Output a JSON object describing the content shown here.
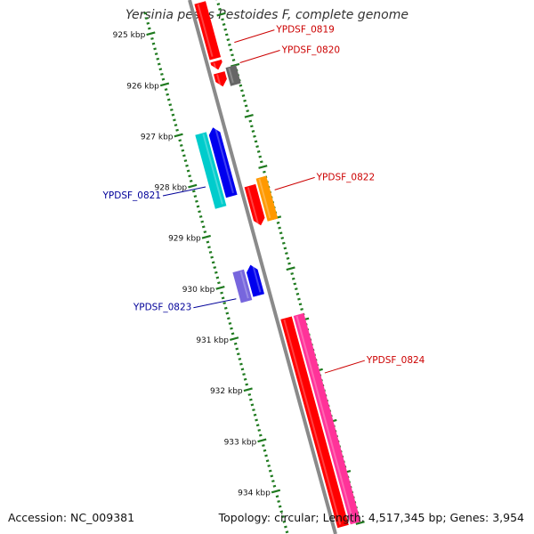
{
  "title": "Yersinia pestis Pestoides F, complete genome",
  "footer": {
    "accession": "Accession: NC_009381",
    "summary": "Topology: circular; Length: 4,517,345 bp; Genes: 3,954"
  },
  "colors": {
    "backbone": "#8a8a8a",
    "ruler": "#1f7a1f",
    "forward_label": "#cc0000",
    "reverse_label": "#000099"
  },
  "ruler_labels": [
    "925 kbp",
    "926 kbp",
    "927 kbp",
    "928 kbp",
    "929 kbp",
    "930 kbp",
    "931 kbp",
    "932 kbp",
    "933 kbp",
    "934 kbp"
  ],
  "features": [
    {
      "strand": "+",
      "start": 924.7,
      "end": 925.8,
      "color": "#ff0000",
      "arrow": "none"
    },
    {
      "strand": "+",
      "start": 925.85,
      "end": 926.02,
      "color": "#ff0000",
      "arrow": "end"
    },
    {
      "strand": "+",
      "start": 926.08,
      "end": 926.35,
      "color": "#ff0000",
      "arrow": "end"
    },
    {
      "strand": "+",
      "start": 926.02,
      "end": 926.38,
      "color": "#666666",
      "arrow": "none",
      "lane": "outer"
    },
    {
      "strand": "+",
      "start": 928.3,
      "end": 929.08,
      "color": "#ff0000",
      "arrow": "end"
    },
    {
      "strand": "+",
      "start": 928.2,
      "end": 929.04,
      "color": "#ff9900",
      "arrow": "none",
      "lane": "outer"
    },
    {
      "strand": "+",
      "start": 930.9,
      "end": 935.0,
      "color": "#ff0000",
      "arrow": "none"
    },
    {
      "strand": "+",
      "start": 930.9,
      "end": 935.0,
      "color": "#ff3399",
      "arrow": "none",
      "lane": "outer"
    },
    {
      "strand": "-",
      "start": 927.1,
      "end": 928.55,
      "color": "#00cccc",
      "arrow": "none",
      "lane": "outer"
    },
    {
      "strand": "-",
      "start": 927.05,
      "end": 928.4,
      "color": "#0000ee",
      "arrow": "start"
    },
    {
      "strand": "-",
      "start": 929.8,
      "end": 930.4,
      "color": "#7766dd",
      "arrow": "none",
      "lane": "outer"
    },
    {
      "strand": "-",
      "start": 929.75,
      "end": 930.35,
      "color": "#0000ee",
      "arrow": "start"
    }
  ],
  "gene_labels": [
    {
      "text": "YPDSF_0819",
      "side": "right",
      "pos": 925.6
    },
    {
      "text": "YPDSF_0820",
      "side": "right",
      "pos": 926.0
    },
    {
      "text": "YPDSF_0821",
      "side": "left",
      "pos": 928.1
    },
    {
      "text": "YPDSF_0822",
      "side": "right",
      "pos": 928.5
    },
    {
      "text": "YPDSF_0823",
      "side": "left",
      "pos": 930.3
    },
    {
      "text": "YPDSF_0824",
      "side": "right",
      "pos": 932.1
    }
  ]
}
